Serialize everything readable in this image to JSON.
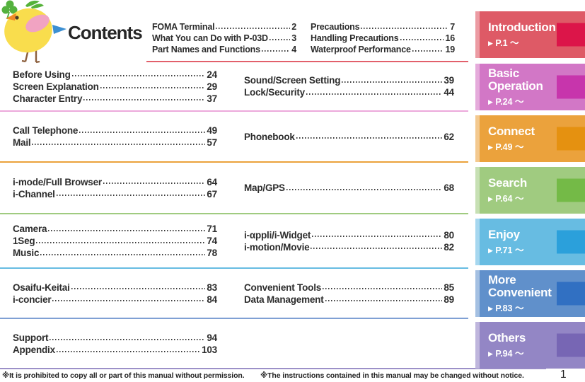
{
  "title": "Contents",
  "intro_toc": {
    "left": [
      {
        "label": "FOMA Terminal",
        "page": "2"
      },
      {
        "label": "What You can Do with P-03D",
        "page": "3"
      },
      {
        "label": "Part Names and Functions",
        "page": "4"
      }
    ],
    "right": [
      {
        "label": "Precautions",
        "page": "7"
      },
      {
        "label": "Handling Precautions",
        "page": "16"
      },
      {
        "label": "Waterproof Performance",
        "page": "19"
      }
    ]
  },
  "sections": [
    {
      "name": "basic-operation",
      "left": [
        {
          "label": "Before Using",
          "page": "24"
        },
        {
          "label": "Screen Explanation",
          "page": "29"
        },
        {
          "label": "Character Entry",
          "page": "37"
        }
      ],
      "right": [
        {
          "label": "Sound/Screen Setting",
          "page": "39"
        },
        {
          "label": "Lock/Security",
          "page": "44"
        }
      ]
    },
    {
      "name": "connect",
      "left": [
        {
          "label": "Call Telephone",
          "page": "49"
        },
        {
          "label": "Mail",
          "page": "57"
        }
      ],
      "right": [
        {
          "label": "Phonebook",
          "page": "62"
        }
      ]
    },
    {
      "name": "search",
      "left": [
        {
          "label": "i-mode/Full Browser",
          "page": "64"
        },
        {
          "label": "i-Channel",
          "page": "67"
        }
      ],
      "right": [
        {
          "label": "Map/GPS",
          "page": "68"
        }
      ]
    },
    {
      "name": "enjoy",
      "left": [
        {
          "label": "Camera",
          "page": "71"
        },
        {
          "label": "1Seg",
          "page": "74"
        },
        {
          "label": "Music",
          "page": "78"
        }
      ],
      "right": [
        {
          "label": "i-αppli/i-Widget",
          "page": "80"
        },
        {
          "label": "i-motion/Movie",
          "page": "82"
        }
      ]
    },
    {
      "name": "more-convenient",
      "left": [
        {
          "label": "Osaifu-Keitai",
          "page": "83"
        },
        {
          "label": "i-concier",
          "page": "84"
        }
      ],
      "right": [
        {
          "label": "Convenient Tools",
          "page": "85"
        },
        {
          "label": "Data Management",
          "page": "89"
        }
      ]
    },
    {
      "name": "others",
      "left": [
        {
          "label": "Support",
          "page": "94"
        },
        {
          "label": "Appendix",
          "page": "103"
        }
      ],
      "right": []
    }
  ],
  "tabs": [
    {
      "lines": [
        "Introduction"
      ],
      "page_ref": "P.1",
      "body": "#DE5A66",
      "stripe": "#EC9BA3",
      "square": "#DC1549"
    },
    {
      "lines": [
        "Basic",
        "Operation"
      ],
      "page_ref": "P.24",
      "body": "#D277C6",
      "stripe": "#E5ABDB",
      "square": "#C735AC"
    },
    {
      "lines": [
        "Connect"
      ],
      "page_ref": "P.49",
      "body": "#EBA23C",
      "stripe": "#F3C98F",
      "square": "#E59110"
    },
    {
      "lines": [
        "Search"
      ],
      "page_ref": "P.64",
      "body": "#A0CB80",
      "stripe": "#C7E0B4",
      "square": "#74BA47"
    },
    {
      "lines": [
        "Enjoy"
      ],
      "page_ref": "P.71",
      "body": "#67BCE2",
      "stripe": "#A6D7EF",
      "square": "#2BA0DB"
    },
    {
      "lines": [
        "More",
        "Convenient"
      ],
      "page_ref": "P.83",
      "body": "#6090CB",
      "stripe": "#A4C0E2",
      "square": "#3170C2"
    },
    {
      "lines": [
        "Others"
      ],
      "page_ref": "P.94",
      "body": "#9386C5",
      "stripe": "#BFB6DD",
      "square": "#7766B4"
    }
  ],
  "tab_glyphs": {
    "arrow": "▶",
    "tilde": "～"
  },
  "separator_colors": [
    "#E2606B",
    "#ECA9DB",
    "#EBA23C",
    "#A0CB80",
    "#67BCE2",
    "#7FA0D4",
    "#9C90C8"
  ],
  "mascot": {
    "description": "yellow-bird-with-clover",
    "pointer_color": "#3C8FD2"
  },
  "footer": {
    "note1": "※It is prohibited to copy all or part of this manual without permission.",
    "note2": "※The instructions contained in this manual may be changed without notice.",
    "page_number": "1"
  }
}
